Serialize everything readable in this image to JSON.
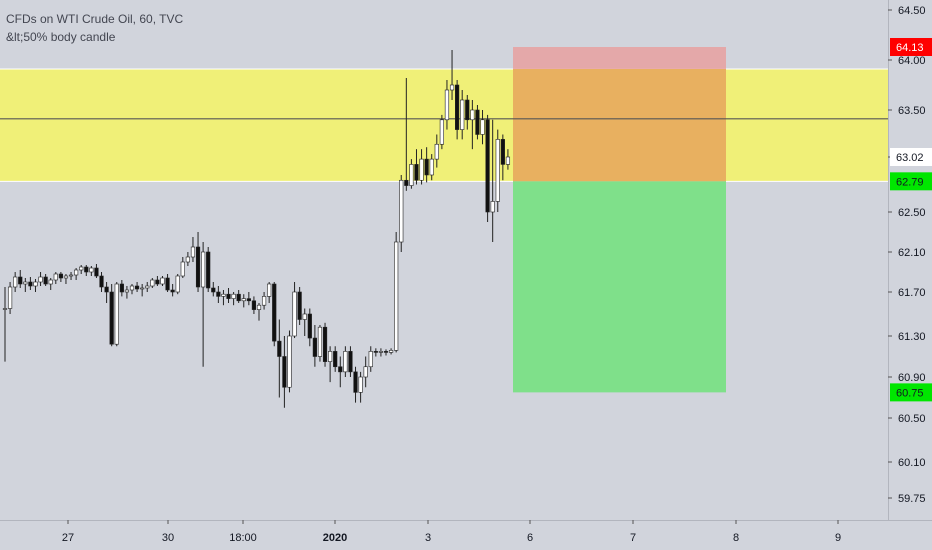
{
  "header": {
    "title": "CFDs on WTI Crude Oil, 60, TVC",
    "subtitle": "&lt;50% body candle"
  },
  "colors": {
    "background": "#d1d4dc",
    "zone": "#f0f078",
    "zone_line": "#ffffff",
    "midline": "#555555",
    "stop_zone": "#e8a0a0",
    "target_zone": "#7fe08a",
    "overlap": "#e8b060",
    "candle_up": "#ffffff",
    "candle_down": "#111111",
    "wick": "#222222",
    "tag_red": "#ff0000",
    "tag_green": "#00e600",
    "axis_line": "#b2b5be"
  },
  "chart_data": {
    "type": "candlestick",
    "y_axis": {
      "ticks": [
        "64.50",
        "64.00",
        "63.50",
        "63.02",
        "62.50",
        "62.10",
        "61.70",
        "61.30",
        "60.90",
        "60.50",
        "60.10",
        "59.75"
      ],
      "ylim": [
        59.55,
        64.75
      ]
    },
    "x_axis": {
      "ticks": [
        "27",
        "30",
        "18:00",
        "2020",
        "3",
        "6",
        "7",
        "8",
        "9"
      ]
    },
    "price_tags": [
      {
        "label": "64.13",
        "value": 64.13,
        "style": "red"
      },
      {
        "label": "63.02",
        "value": 63.02,
        "style": "plain"
      },
      {
        "label": "62.79",
        "value": 62.79,
        "style": "green"
      },
      {
        "label": "60.75",
        "value": 60.75,
        "style": "green"
      }
    ],
    "zone": {
      "top": 63.91,
      "bottom": 62.79,
      "midline": 63.41
    },
    "position": {
      "stop": 64.13,
      "entry": 62.79,
      "target": 60.75
    },
    "candles": [
      [
        61.55,
        61.75,
        61.05,
        61.55
      ],
      [
        61.55,
        61.8,
        61.5,
        61.75
      ],
      [
        61.75,
        61.9,
        61.7,
        61.85
      ],
      [
        61.85,
        61.92,
        61.74,
        61.78
      ],
      [
        61.78,
        61.84,
        61.7,
        61.8
      ],
      [
        61.8,
        61.85,
        61.72,
        61.76
      ],
      [
        61.76,
        61.83,
        61.7,
        61.8
      ],
      [
        61.8,
        61.9,
        61.76,
        61.85
      ],
      [
        61.85,
        61.88,
        61.76,
        61.78
      ],
      [
        61.78,
        61.84,
        61.72,
        61.82
      ],
      [
        61.82,
        61.9,
        61.78,
        61.88
      ],
      [
        61.88,
        61.9,
        61.8,
        61.84
      ],
      [
        61.84,
        61.88,
        61.78,
        61.86
      ],
      [
        61.86,
        61.9,
        61.82,
        61.87
      ],
      [
        61.87,
        61.94,
        61.82,
        61.92
      ],
      [
        61.92,
        61.97,
        61.88,
        61.95
      ],
      [
        61.95,
        61.97,
        61.86,
        61.9
      ],
      [
        61.9,
        61.96,
        61.86,
        61.94
      ],
      [
        61.94,
        61.98,
        61.84,
        61.86
      ],
      [
        61.86,
        61.9,
        61.7,
        61.75
      ],
      [
        61.75,
        61.8,
        61.6,
        61.7
      ],
      [
        61.7,
        61.78,
        61.2,
        61.22
      ],
      [
        61.22,
        61.8,
        61.2,
        61.78
      ],
      [
        61.78,
        61.82,
        61.66,
        61.7
      ],
      [
        61.7,
        61.76,
        61.64,
        61.72
      ],
      [
        61.72,
        61.78,
        61.68,
        61.76
      ],
      [
        61.76,
        61.8,
        61.7,
        61.73
      ],
      [
        61.73,
        61.78,
        61.66,
        61.74
      ],
      [
        61.74,
        61.8,
        61.7,
        61.76
      ],
      [
        61.76,
        61.84,
        61.74,
        61.82
      ],
      [
        61.82,
        61.86,
        61.76,
        61.78
      ],
      [
        61.78,
        61.86,
        61.76,
        61.84
      ],
      [
        61.84,
        61.88,
        61.7,
        61.72
      ],
      [
        61.72,
        61.78,
        61.66,
        61.7
      ],
      [
        61.7,
        61.88,
        61.68,
        61.86
      ],
      [
        61.86,
        62.05,
        61.84,
        62.0
      ],
      [
        62.0,
        62.1,
        61.96,
        62.05
      ],
      [
        62.05,
        62.25,
        62.0,
        62.15
      ],
      [
        62.15,
        62.3,
        61.7,
        61.75
      ],
      [
        61.75,
        62.2,
        61.0,
        62.1
      ],
      [
        62.1,
        62.15,
        61.7,
        61.74
      ],
      [
        61.74,
        61.8,
        61.66,
        61.7
      ],
      [
        61.7,
        61.76,
        61.6,
        61.66
      ],
      [
        61.66,
        61.72,
        61.58,
        61.68
      ],
      [
        61.68,
        61.74,
        61.6,
        61.64
      ],
      [
        61.64,
        61.7,
        61.58,
        61.68
      ],
      [
        61.68,
        61.72,
        61.6,
        61.62
      ],
      [
        61.62,
        61.68,
        61.56,
        61.64
      ],
      [
        61.64,
        61.7,
        61.58,
        61.62
      ],
      [
        61.62,
        61.66,
        61.5,
        61.54
      ],
      [
        61.54,
        61.6,
        61.44,
        61.58
      ],
      [
        61.58,
        61.7,
        61.54,
        61.66
      ],
      [
        61.66,
        61.8,
        61.6,
        61.78
      ],
      [
        61.78,
        61.8,
        61.2,
        61.25
      ],
      [
        61.25,
        61.45,
        60.7,
        61.1
      ],
      [
        61.1,
        61.3,
        60.6,
        60.8
      ],
      [
        60.8,
        61.35,
        60.75,
        61.3
      ],
      [
        61.3,
        61.8,
        61.28,
        61.7
      ],
      [
        61.7,
        61.75,
        61.4,
        61.45
      ],
      [
        61.45,
        61.55,
        61.3,
        61.5
      ],
      [
        61.5,
        61.55,
        61.2,
        61.28
      ],
      [
        61.28,
        61.4,
        61.0,
        61.1
      ],
      [
        61.1,
        61.4,
        61.05,
        61.38
      ],
      [
        61.38,
        61.42,
        61.0,
        61.05
      ],
      [
        61.05,
        61.2,
        60.85,
        61.15
      ],
      [
        61.15,
        61.2,
        60.95,
        61.0
      ],
      [
        61.0,
        61.1,
        60.8,
        60.95
      ],
      [
        60.95,
        61.2,
        60.9,
        61.15
      ],
      [
        61.15,
        61.2,
        60.9,
        60.95
      ],
      [
        60.95,
        61.0,
        60.65,
        60.75
      ],
      [
        60.75,
        60.95,
        60.65,
        60.9
      ],
      [
        60.9,
        61.1,
        60.8,
        61.0
      ],
      [
        61.0,
        61.2,
        60.95,
        61.15
      ],
      [
        61.15,
        61.18,
        61.1,
        61.14
      ],
      [
        61.14,
        61.18,
        61.1,
        61.15
      ],
      [
        61.15,
        61.17,
        61.11,
        61.14
      ],
      [
        61.14,
        61.18,
        61.12,
        61.16
      ],
      [
        61.16,
        62.3,
        61.14,
        62.2
      ],
      [
        62.2,
        62.85,
        62.1,
        62.8
      ],
      [
        62.8,
        63.82,
        62.7,
        62.75
      ],
      [
        62.75,
        63.0,
        62.72,
        62.95
      ],
      [
        62.95,
        63.1,
        62.76,
        62.8
      ],
      [
        62.8,
        63.1,
        62.76,
        63.0
      ],
      [
        63.0,
        63.12,
        62.78,
        62.85
      ],
      [
        62.85,
        63.05,
        62.8,
        63.0
      ],
      [
        63.0,
        63.25,
        62.92,
        63.15
      ],
      [
        63.15,
        63.45,
        63.1,
        63.4
      ],
      [
        63.4,
        63.8,
        63.3,
        63.7
      ],
      [
        63.7,
        64.1,
        63.6,
        63.75
      ],
      [
        63.75,
        63.8,
        63.2,
        63.3
      ],
      [
        63.3,
        63.7,
        63.2,
        63.6
      ],
      [
        63.6,
        63.65,
        63.3,
        63.4
      ],
      [
        63.4,
        63.6,
        63.1,
        63.5
      ],
      [
        63.5,
        63.55,
        63.2,
        63.25
      ],
      [
        63.25,
        63.5,
        63.15,
        63.4
      ],
      [
        63.4,
        63.45,
        62.4,
        62.5
      ],
      [
        62.5,
        63.4,
        62.2,
        62.6
      ],
      [
        62.6,
        63.3,
        62.5,
        63.2
      ],
      [
        63.2,
        63.25,
        62.8,
        62.95
      ],
      [
        62.95,
        63.1,
        62.9,
        63.02
      ]
    ]
  }
}
